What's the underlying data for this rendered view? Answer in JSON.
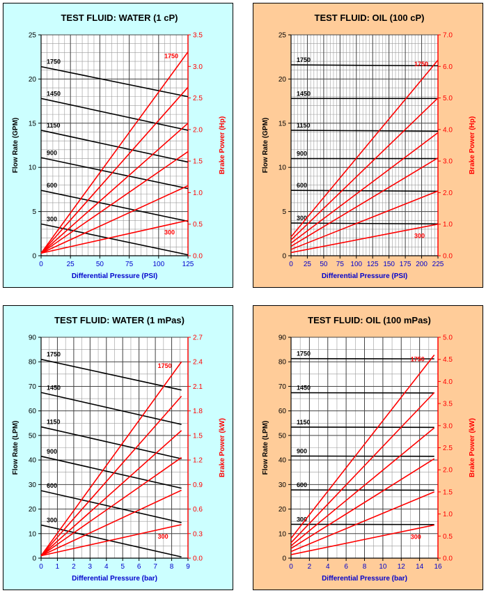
{
  "colors": {
    "water_bg": "#ccffff",
    "oil_bg": "#ffcc99",
    "flow_line": "#000000",
    "power_line": "#ff0000",
    "power_axis": "#ff0000",
    "xlabel_color": "#0000cc"
  },
  "chart_data": [
    {
      "type": "line",
      "title": "TEST FLUID:  WATER (1 cP)",
      "theme": "water",
      "xlabel": "Differential Pressure (PSI)",
      "ylabel": "Flow Rate (GPM)",
      "y2label": "Brake Power (Hp)",
      "xlim": [
        0,
        125
      ],
      "ylim": [
        0,
        25
      ],
      "y2lim": [
        0,
        3.5
      ],
      "xticks": [
        "0",
        "25",
        "50",
        "75",
        "100",
        "125"
      ],
      "yticks": [
        "0",
        "5",
        "10",
        "15",
        "20",
        "25"
      ],
      "y2ticks": [
        "0.0",
        "0.5",
        "1.0",
        "1.5",
        "2.0",
        "2.5",
        "3.0",
        "3.5"
      ],
      "minor_x": 5,
      "minor_y": 1,
      "flow_series": [
        {
          "label": "1750",
          "x": [
            0,
            125
          ],
          "y": [
            21.4,
            18.0
          ]
        },
        {
          "label": "1450",
          "x": [
            0,
            125
          ],
          "y": [
            17.8,
            14.2
          ]
        },
        {
          "label": "1150",
          "x": [
            0,
            125
          ],
          "y": [
            14.2,
            10.6
          ]
        },
        {
          "label": "900",
          "x": [
            0,
            125
          ],
          "y": [
            11.1,
            7.6
          ]
        },
        {
          "label": "600",
          "x": [
            0,
            125
          ],
          "y": [
            7.4,
            3.9
          ]
        },
        {
          "label": "300",
          "x": [
            0,
            125
          ],
          "y": [
            3.6,
            0.1
          ]
        }
      ],
      "power_series": [
        {
          "label": "1750",
          "x": [
            0,
            125
          ],
          "y": [
            0.04,
            3.23
          ]
        },
        {
          "label": "",
          "x": [
            0,
            125
          ],
          "y": [
            0.04,
            2.67
          ]
        },
        {
          "label": "",
          "x": [
            0,
            125
          ],
          "y": [
            0.04,
            2.1
          ]
        },
        {
          "label": "",
          "x": [
            0,
            125
          ],
          "y": [
            0.04,
            1.65
          ]
        },
        {
          "label": "",
          "x": [
            0,
            125
          ],
          "y": [
            0.04,
            1.11
          ]
        },
        {
          "label": "300",
          "x": [
            0,
            125
          ],
          "y": [
            0.04,
            0.56
          ]
        }
      ]
    },
    {
      "type": "line",
      "title": "TEST FLUID:  OIL (100 cP)",
      "theme": "oil",
      "xlabel": "Differential Pressure (PSI)",
      "ylabel": "Flow Rate (GPM)",
      "y2label": "Brake Power (Hp)",
      "xlim": [
        0,
        225
      ],
      "ylim": [
        0,
        25
      ],
      "y2lim": [
        0,
        7.0
      ],
      "xticks": [
        "0",
        "25",
        "50",
        "75",
        "100",
        "125",
        "150",
        "175",
        "200",
        "225"
      ],
      "yticks": [
        "0",
        "5",
        "10",
        "15",
        "20",
        "25"
      ],
      "y2ticks": [
        "0.0",
        "1.0",
        "2.0",
        "3.0",
        "4.0",
        "5.0",
        "6.0",
        "7.0"
      ],
      "minor_x": 5,
      "minor_y": 1,
      "flow_series": [
        {
          "label": "1750",
          "x": [
            0,
            225
          ],
          "y": [
            21.6,
            21.5
          ]
        },
        {
          "label": "1450",
          "x": [
            0,
            225
          ],
          "y": [
            17.8,
            17.8
          ]
        },
        {
          "label": "1150",
          "x": [
            0,
            225
          ],
          "y": [
            14.2,
            14.1
          ]
        },
        {
          "label": "900",
          "x": [
            0,
            225
          ],
          "y": [
            11.0,
            11.0
          ]
        },
        {
          "label": "600",
          "x": [
            0,
            225
          ],
          "y": [
            7.4,
            7.3
          ]
        },
        {
          "label": "300",
          "x": [
            0,
            225
          ],
          "y": [
            3.7,
            3.6
          ]
        }
      ],
      "power_series": [
        {
          "label": "1750",
          "x": [
            0,
            225
          ],
          "y": [
            0.6,
            6.2
          ]
        },
        {
          "label": "",
          "x": [
            0,
            225
          ],
          "y": [
            0.5,
            5.0
          ]
        },
        {
          "label": "",
          "x": [
            0,
            225
          ],
          "y": [
            0.4,
            3.9
          ]
        },
        {
          "label": "",
          "x": [
            0,
            225
          ],
          "y": [
            0.3,
            3.1
          ]
        },
        {
          "label": "",
          "x": [
            0,
            225
          ],
          "y": [
            0.2,
            2.05
          ]
        },
        {
          "label": "300",
          "x": [
            0,
            225
          ],
          "y": [
            0.1,
            1.0
          ]
        }
      ]
    },
    {
      "type": "line",
      "title": "TEST FLUID:  WATER (1 mPas)",
      "theme": "water",
      "xlabel": "Differential Pressure (bar)",
      "ylabel": "Flow Rate (LPM)",
      "y2label": "Brake Power (kW)",
      "xlim": [
        0,
        9
      ],
      "ylim": [
        0,
        90
      ],
      "y2lim": [
        0,
        2.7
      ],
      "xticks": [
        "0",
        "1",
        "2",
        "3",
        "4",
        "5",
        "6",
        "7",
        "8",
        "9"
      ],
      "yticks": [
        "0",
        "10",
        "20",
        "30",
        "40",
        "50",
        "60",
        "70",
        "80",
        "90"
      ],
      "y2ticks": [
        "0.0",
        "0.3",
        "0.6",
        "0.9",
        "1.2",
        "1.5",
        "1.8",
        "2.1",
        "2.4",
        "2.7"
      ],
      "minor_x": 0.5,
      "minor_y": 5,
      "flow_series": [
        {
          "label": "1750",
          "x": [
            0,
            8.6
          ],
          "y": [
            81,
            68.5
          ]
        },
        {
          "label": "1450",
          "x": [
            0,
            8.6
          ],
          "y": [
            67.5,
            54.5
          ]
        },
        {
          "label": "1150",
          "x": [
            0,
            8.6
          ],
          "y": [
            53.5,
            40.5
          ]
        },
        {
          "label": "900",
          "x": [
            0,
            8.6
          ],
          "y": [
            41.5,
            28.5
          ]
        },
        {
          "label": "600",
          "x": [
            0,
            8.6
          ],
          "y": [
            27.5,
            14.5
          ]
        },
        {
          "label": "300",
          "x": [
            0,
            8.6
          ],
          "y": [
            13.5,
            0.5
          ]
        }
      ],
      "power_series": [
        {
          "label": "1750",
          "x": [
            0,
            8.6
          ],
          "y": [
            0.03,
            2.4
          ]
        },
        {
          "label": "",
          "x": [
            0,
            8.6
          ],
          "y": [
            0.03,
            1.98
          ]
        },
        {
          "label": "",
          "x": [
            0,
            8.6
          ],
          "y": [
            0.03,
            1.56
          ]
        },
        {
          "label": "",
          "x": [
            0,
            8.6
          ],
          "y": [
            0.03,
            1.23
          ]
        },
        {
          "label": "",
          "x": [
            0,
            8.6
          ],
          "y": [
            0.03,
            0.83
          ]
        },
        {
          "label": "300",
          "x": [
            0,
            8.6
          ],
          "y": [
            0.03,
            0.41
          ]
        }
      ]
    },
    {
      "type": "line",
      "title": "TEST FLUID:  OIL (100 mPas)",
      "theme": "oil",
      "xlabel": "Differential Pressure (bar)",
      "ylabel": "Flow Rate (LPM)",
      "y2label": "Brake Power (kW)",
      "xlim": [
        0,
        16
      ],
      "ylim": [
        0,
        90
      ],
      "y2lim": [
        0,
        5.0
      ],
      "xticks": [
        "0",
        "2",
        "4",
        "6",
        "8",
        "10",
        "12",
        "14",
        "16"
      ],
      "yticks": [
        "0",
        "10",
        "20",
        "30",
        "40",
        "50",
        "60",
        "70",
        "80",
        "90"
      ],
      "y2ticks": [
        "0.0",
        "0.5",
        "1.0",
        "1.5",
        "2.0",
        "2.5",
        "3.0",
        "3.5",
        "4.0",
        "4.5",
        "5.0"
      ],
      "minor_x": 1,
      "minor_y": 5,
      "flow_series": [
        {
          "label": "1750",
          "x": [
            0,
            15.6
          ],
          "y": [
            81.3,
            81.2
          ]
        },
        {
          "label": "1450",
          "x": [
            0,
            15.6
          ],
          "y": [
            67.4,
            67.3
          ]
        },
        {
          "label": "1150",
          "x": [
            0,
            15.6
          ],
          "y": [
            53.4,
            53.3
          ]
        },
        {
          "label": "900",
          "x": [
            0,
            15.6
          ],
          "y": [
            41.6,
            41.5
          ]
        },
        {
          "label": "600",
          "x": [
            0,
            15.6
          ],
          "y": [
            27.8,
            27.7
          ]
        },
        {
          "label": "300",
          "x": [
            0,
            15.6
          ],
          "y": [
            13.8,
            13.7
          ]
        }
      ],
      "power_series": [
        {
          "label": "1750",
          "x": [
            0,
            15.6
          ],
          "y": [
            0.45,
            4.6
          ]
        },
        {
          "label": "",
          "x": [
            0,
            15.6
          ],
          "y": [
            0.35,
            3.75
          ]
        },
        {
          "label": "",
          "x": [
            0,
            15.6
          ],
          "y": [
            0.28,
            2.95
          ]
        },
        {
          "label": "",
          "x": [
            0,
            15.6
          ],
          "y": [
            0.22,
            2.25
          ]
        },
        {
          "label": "",
          "x": [
            0,
            15.6
          ],
          "y": [
            0.15,
            1.5
          ]
        },
        {
          "label": "300",
          "x": [
            0,
            15.6
          ],
          "y": [
            0.08,
            0.75
          ]
        }
      ]
    }
  ]
}
